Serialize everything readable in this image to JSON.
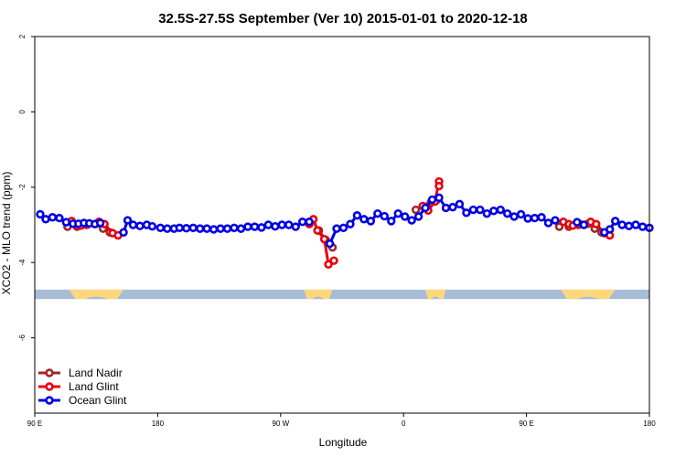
{
  "chart_data": {
    "type": "line",
    "title": "32.5S-27.5S September (Ver 10)   2015-01-01 to 2020-12-18",
    "xlabel": "Longitude",
    "ylabel": "XCO2 - MLO trend (ppm)",
    "xlim": [
      90,
      540
    ],
    "ylim": [
      -8,
      2
    ],
    "x_ticks": [
      {
        "value": 90,
        "label": "90 E"
      },
      {
        "value": 180,
        "label": "180"
      },
      {
        "value": 270,
        "label": "90 W"
      },
      {
        "value": 360,
        "label": "0"
      },
      {
        "value": 450,
        "label": "90 E"
      },
      {
        "value": 540,
        "label": "180"
      }
    ],
    "y_ticks": [
      {
        "value": 2,
        "label": "2"
      },
      {
        "value": 0,
        "label": "0"
      },
      {
        "value": -2,
        "label": "-2"
      },
      {
        "value": -4,
        "label": "-4"
      },
      {
        "value": -6,
        "label": "-6"
      }
    ],
    "land_band": {
      "y_range": [
        -4.97,
        -4.72
      ],
      "ocean_color": "#a8bcd8",
      "land_color": "#fdd87a",
      "land_segments": [
        [
          115,
          155
        ],
        [
          287,
          308
        ],
        [
          376,
          391
        ],
        [
          475,
          515
        ]
      ]
    },
    "legend_position": "bottom-left",
    "series": [
      {
        "name": "Land Nadir",
        "color": "#a0282a",
        "points": [
          [
            114,
            -3.05
          ],
          [
            121,
            -3.05
          ],
          [
            128,
            -3.0
          ],
          [
            135,
            -2.97
          ],
          [
            140,
            -3.1
          ],
          [
            145,
            -3.2
          ],
          [
            291,
            -2.95
          ],
          [
            298,
            -3.15
          ],
          [
            303,
            -3.4
          ],
          [
            308,
            -3.6
          ],
          [
            369,
            -2.6
          ],
          [
            376,
            -2.52
          ],
          [
            380,
            -2.4
          ],
          [
            384,
            -2.35
          ],
          [
            474,
            -3.05
          ],
          [
            481,
            -3.05
          ],
          [
            488,
            -3.0
          ],
          [
            495,
            -2.97
          ],
          [
            500,
            -3.1
          ],
          [
            505,
            -3.2
          ]
        ]
      },
      {
        "name": "Land Glint",
        "color": "#e8000b",
        "points": [
          [
            117,
            -2.9
          ],
          [
            121,
            -3.0
          ],
          [
            124,
            -3.02
          ],
          [
            129,
            -2.98
          ],
          [
            137,
            -2.92
          ],
          [
            141,
            -2.98
          ],
          [
            147,
            -3.22
          ],
          [
            151,
            -3.28
          ],
          [
            291,
            -2.98
          ],
          [
            294,
            -2.85
          ],
          [
            297,
            -3.15
          ],
          [
            302,
            -3.38
          ],
          [
            305,
            -4.05
          ],
          [
            309,
            -3.95
          ],
          [
            374,
            -2.5
          ],
          [
            378,
            -2.62
          ],
          [
            383,
            -2.38
          ],
          [
            386,
            -1.85
          ],
          [
            386,
            -1.97
          ],
          [
            477,
            -2.92
          ],
          [
            481,
            -2.98
          ],
          [
            484,
            -3.02
          ],
          [
            489,
            -2.98
          ],
          [
            497,
            -2.92
          ],
          [
            501,
            -2.98
          ],
          [
            507,
            -3.22
          ],
          [
            511,
            -3.28
          ]
        ]
      },
      {
        "name": "Ocean Glint",
        "color": "#0000e6",
        "points": [
          [
            94,
            -2.72
          ],
          [
            98,
            -2.85
          ],
          [
            103,
            -2.8
          ],
          [
            108,
            -2.82
          ],
          [
            113,
            -2.93
          ],
          [
            118,
            -2.97
          ],
          [
            122,
            -2.97
          ],
          [
            126,
            -2.95
          ],
          [
            130,
            -2.96
          ],
          [
            134,
            -2.98
          ],
          [
            138,
            -2.95
          ],
          [
            155,
            -3.2
          ],
          [
            158,
            -2.88
          ],
          [
            162,
            -3.0
          ],
          [
            167,
            -3.03
          ],
          [
            172,
            -3.0
          ],
          [
            176,
            -3.04
          ],
          [
            182,
            -3.08
          ],
          [
            187,
            -3.1
          ],
          [
            192,
            -3.1
          ],
          [
            196,
            -3.08
          ],
          [
            201,
            -3.09
          ],
          [
            206,
            -3.08
          ],
          [
            211,
            -3.1
          ],
          [
            216,
            -3.1
          ],
          [
            221,
            -3.12
          ],
          [
            226,
            -3.1
          ],
          [
            231,
            -3.1
          ],
          [
            236,
            -3.08
          ],
          [
            241,
            -3.1
          ],
          [
            246,
            -3.05
          ],
          [
            251,
            -3.05
          ],
          [
            256,
            -3.07
          ],
          [
            261,
            -3.0
          ],
          [
            266,
            -3.04
          ],
          [
            271,
            -3.0
          ],
          [
            276,
            -3.0
          ],
          [
            281,
            -3.05
          ],
          [
            286,
            -2.92
          ],
          [
            291,
            -2.92
          ],
          [
            306,
            -3.5
          ],
          [
            311,
            -3.1
          ],
          [
            316,
            -3.08
          ],
          [
            321,
            -2.98
          ],
          [
            326,
            -2.75
          ],
          [
            331,
            -2.85
          ],
          [
            336,
            -2.9
          ],
          [
            341,
            -2.7
          ],
          [
            346,
            -2.77
          ],
          [
            351,
            -2.9
          ],
          [
            356,
            -2.7
          ],
          [
            361,
            -2.78
          ],
          [
            366,
            -2.88
          ],
          [
            371,
            -2.78
          ],
          [
            376,
            -2.55
          ],
          [
            381,
            -2.33
          ],
          [
            386,
            -2.28
          ],
          [
            391,
            -2.55
          ],
          [
            396,
            -2.53
          ],
          [
            401,
            -2.45
          ],
          [
            406,
            -2.68
          ],
          [
            411,
            -2.6
          ],
          [
            416,
            -2.6
          ],
          [
            421,
            -2.7
          ],
          [
            426,
            -2.63
          ],
          [
            431,
            -2.6
          ],
          [
            436,
            -2.7
          ],
          [
            441,
            -2.78
          ],
          [
            446,
            -2.72
          ],
          [
            451,
            -2.83
          ],
          [
            456,
            -2.82
          ],
          [
            461,
            -2.8
          ],
          [
            466,
            -2.95
          ],
          [
            471,
            -2.88
          ],
          [
            487,
            -2.93
          ],
          [
            492,
            -3.0
          ],
          [
            507,
            -3.2
          ],
          [
            511,
            -3.12
          ],
          [
            515,
            -2.9
          ],
          [
            520,
            -3.0
          ],
          [
            525,
            -3.03
          ],
          [
            530,
            -3.0
          ],
          [
            535,
            -3.05
          ],
          [
            540,
            -3.08
          ]
        ]
      }
    ]
  }
}
